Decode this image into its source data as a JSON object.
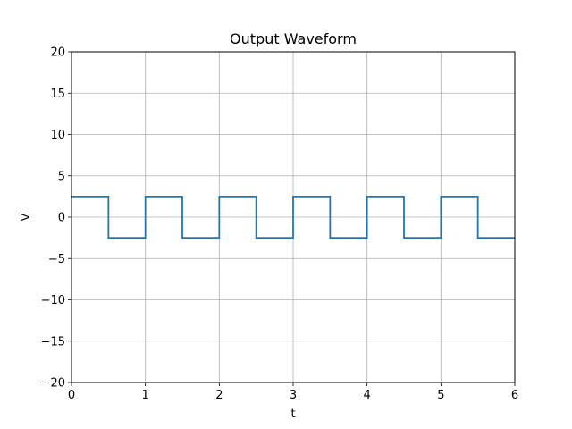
{
  "chart_data": {
    "type": "line",
    "title": "Output Waveform",
    "xlabel": "t",
    "ylabel": "V",
    "xlim": [
      0,
      6
    ],
    "ylim": [
      -20,
      20
    ],
    "xticks": [
      0,
      1,
      2,
      3,
      4,
      5,
      6
    ],
    "yticks": [
      -20,
      -15,
      -10,
      -5,
      0,
      5,
      10,
      15,
      20
    ],
    "xtick_labels": [
      "0",
      "1",
      "2",
      "3",
      "4",
      "5",
      "6"
    ],
    "ytick_labels": [
      "−20",
      "−15",
      "−10",
      "−5",
      "0",
      "5",
      "10",
      "15",
      "20"
    ],
    "grid": true,
    "series": [
      {
        "color": "#1f77b4",
        "step": "post",
        "x": [
          0,
          0.5,
          1,
          1.5,
          2,
          2.5,
          3,
          3.5,
          4,
          4.5,
          5,
          5.5,
          6
        ],
        "y": [
          2.5,
          -2.5,
          2.5,
          -2.5,
          2.5,
          -2.5,
          2.5,
          -2.5,
          2.5,
          -2.5,
          2.5,
          -2.5,
          -2.5
        ]
      }
    ]
  }
}
